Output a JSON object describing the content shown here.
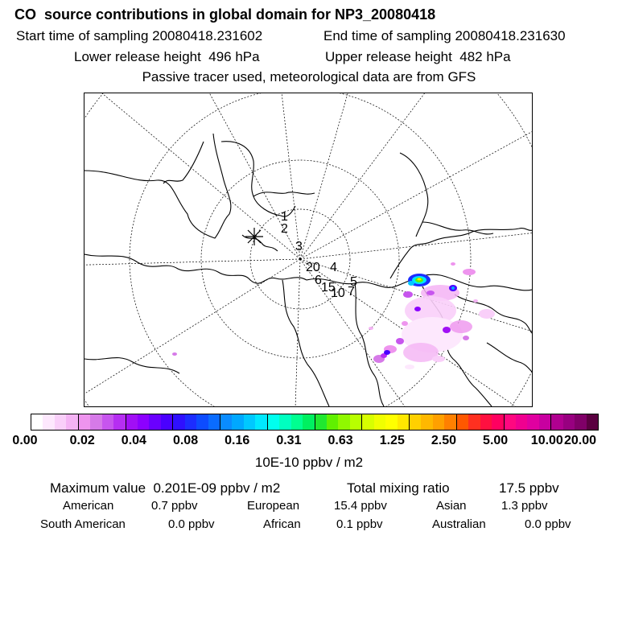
{
  "header": {
    "title": "CO  source contributions in global domain for NP3_20080418",
    "start_time": "Start time of sampling 20080418.231602",
    "end_time": "End time of sampling 20080418.231630",
    "lower_height": "Lower release height  496 hPa",
    "upper_height": "Upper release height  482 hPa",
    "tracer_note": "Passive tracer used, meteorological data are from GFS"
  },
  "map": {
    "projection": "north-polar-stereographic",
    "trajectory_labels": [
      "1",
      "2",
      "3",
      "20",
      "4",
      "6",
      "5",
      "15",
      "10",
      "7"
    ],
    "marker_icon": "receptor-star-icon"
  },
  "colorbar": {
    "colors": [
      "#ffffff",
      "#fde8fd",
      "#f9cff9",
      "#f4b3f4",
      "#ee94ee",
      "#d67ae8",
      "#c755ee",
      "#b62ef2",
      "#a10ff5",
      "#8c00ff",
      "#6a00ff",
      "#4a00ff",
      "#2f10ff",
      "#1c2dff",
      "#0d4cff",
      "#0a6cff",
      "#0a8cff",
      "#00a8ff",
      "#00c8ff",
      "#00e8ff",
      "#00ffee",
      "#00ffc0",
      "#00ff90",
      "#00f060",
      "#20e830",
      "#60f000",
      "#90f800",
      "#b8ff00",
      "#d8ff00",
      "#f0ff00",
      "#ffff00",
      "#ffe800",
      "#ffd000",
      "#ffb800",
      "#ffa000",
      "#ff8000",
      "#ff5800",
      "#ff3020",
      "#ff1040",
      "#ff0060",
      "#ff0880",
      "#f00090",
      "#e000a0",
      "#c800a0",
      "#b00090",
      "#980080",
      "#800068",
      "#5a0040"
    ],
    "tick_labels": [
      "0.00",
      "0.02",
      "0.04",
      "0.08",
      "0.16",
      "0.31",
      "0.63",
      "1.25",
      "2.50",
      "5.00",
      "10.00",
      "20.00"
    ],
    "unit_label": "10E-10 ppbv / m2"
  },
  "stats": {
    "max_value": "Maximum value  0.201E-09 ppbv / m2",
    "total_label": "Total mixing ratio",
    "total_value": "17.5 ppbv",
    "american_label": "American",
    "american_value": "0.7 ppbv",
    "european_label": "European",
    "european_value": "15.4 ppbv",
    "asian_label": "Asian",
    "asian_value": "1.3 ppbv",
    "south_american_label": "South American",
    "south_american_value": "0.0 ppbv",
    "african_label": "African",
    "african_value": "0.1 ppbv",
    "australian_label": "Australian",
    "australian_value": "0.0 ppbv"
  }
}
